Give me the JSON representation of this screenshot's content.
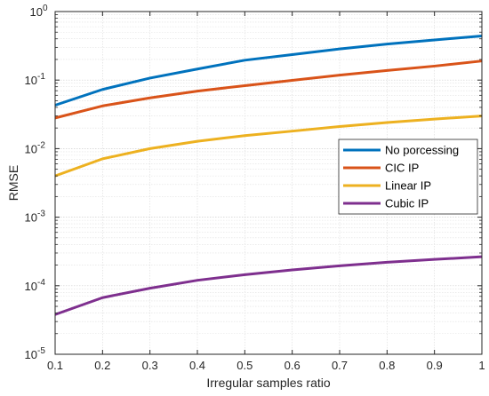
{
  "chart_data": {
    "type": "line",
    "xlabel": "Irregular samples ratio",
    "ylabel": "RMSE",
    "yscale": "log",
    "xlim": [
      0.1,
      1
    ],
    "ylim": [
      1e-05,
      1
    ],
    "grid": true,
    "legend_position": "right",
    "x": [
      0.1,
      0.2,
      0.3,
      0.4,
      0.5,
      0.6,
      0.7,
      0.8,
      0.9,
      1.0
    ],
    "x_ticks": [
      {
        "value": 0.1,
        "label": "0.1"
      },
      {
        "value": 0.2,
        "label": "0.2"
      },
      {
        "value": 0.3,
        "label": "0.3"
      },
      {
        "value": 0.4,
        "label": "0.4"
      },
      {
        "value": 0.5,
        "label": "0.5"
      },
      {
        "value": 0.6,
        "label": "0.6"
      },
      {
        "value": 0.7,
        "label": "0.7"
      },
      {
        "value": 0.8,
        "label": "0.8"
      },
      {
        "value": 0.9,
        "label": "0.9"
      },
      {
        "value": 1.0,
        "label": "1"
      }
    ],
    "y_ticks": [
      {
        "exp": 0,
        "base": "10",
        "sup": "0"
      },
      {
        "exp": -1,
        "base": "10",
        "sup": "-1"
      },
      {
        "exp": -2,
        "base": "10",
        "sup": "-2"
      },
      {
        "exp": -3,
        "base": "10",
        "sup": "-3"
      },
      {
        "exp": -4,
        "base": "10",
        "sup": "-4"
      },
      {
        "exp": -5,
        "base": "10",
        "sup": "-5"
      }
    ],
    "series": [
      {
        "name": "No porcessing",
        "color": "#0072BD",
        "values": [
          0.043,
          0.073,
          0.107,
          0.145,
          0.195,
          0.235,
          0.285,
          0.335,
          0.385,
          0.44
        ]
      },
      {
        "name": "CIC IP",
        "color": "#D95319",
        "values": [
          0.028,
          0.042,
          0.055,
          0.069,
          0.083,
          0.099,
          0.118,
          0.138,
          0.16,
          0.19
        ]
      },
      {
        "name": "Linear IP",
        "color": "#EDB120",
        "values": [
          0.004,
          0.0071,
          0.01,
          0.0128,
          0.0155,
          0.018,
          0.021,
          0.024,
          0.027,
          0.03
        ]
      },
      {
        "name": "Cubic IP",
        "color": "#7E2F8E",
        "values": [
          3.8e-05,
          6.7e-05,
          9.2e-05,
          0.00012,
          0.000145,
          0.00017,
          0.000195,
          0.00022,
          0.000242,
          0.000265
        ]
      }
    ]
  }
}
